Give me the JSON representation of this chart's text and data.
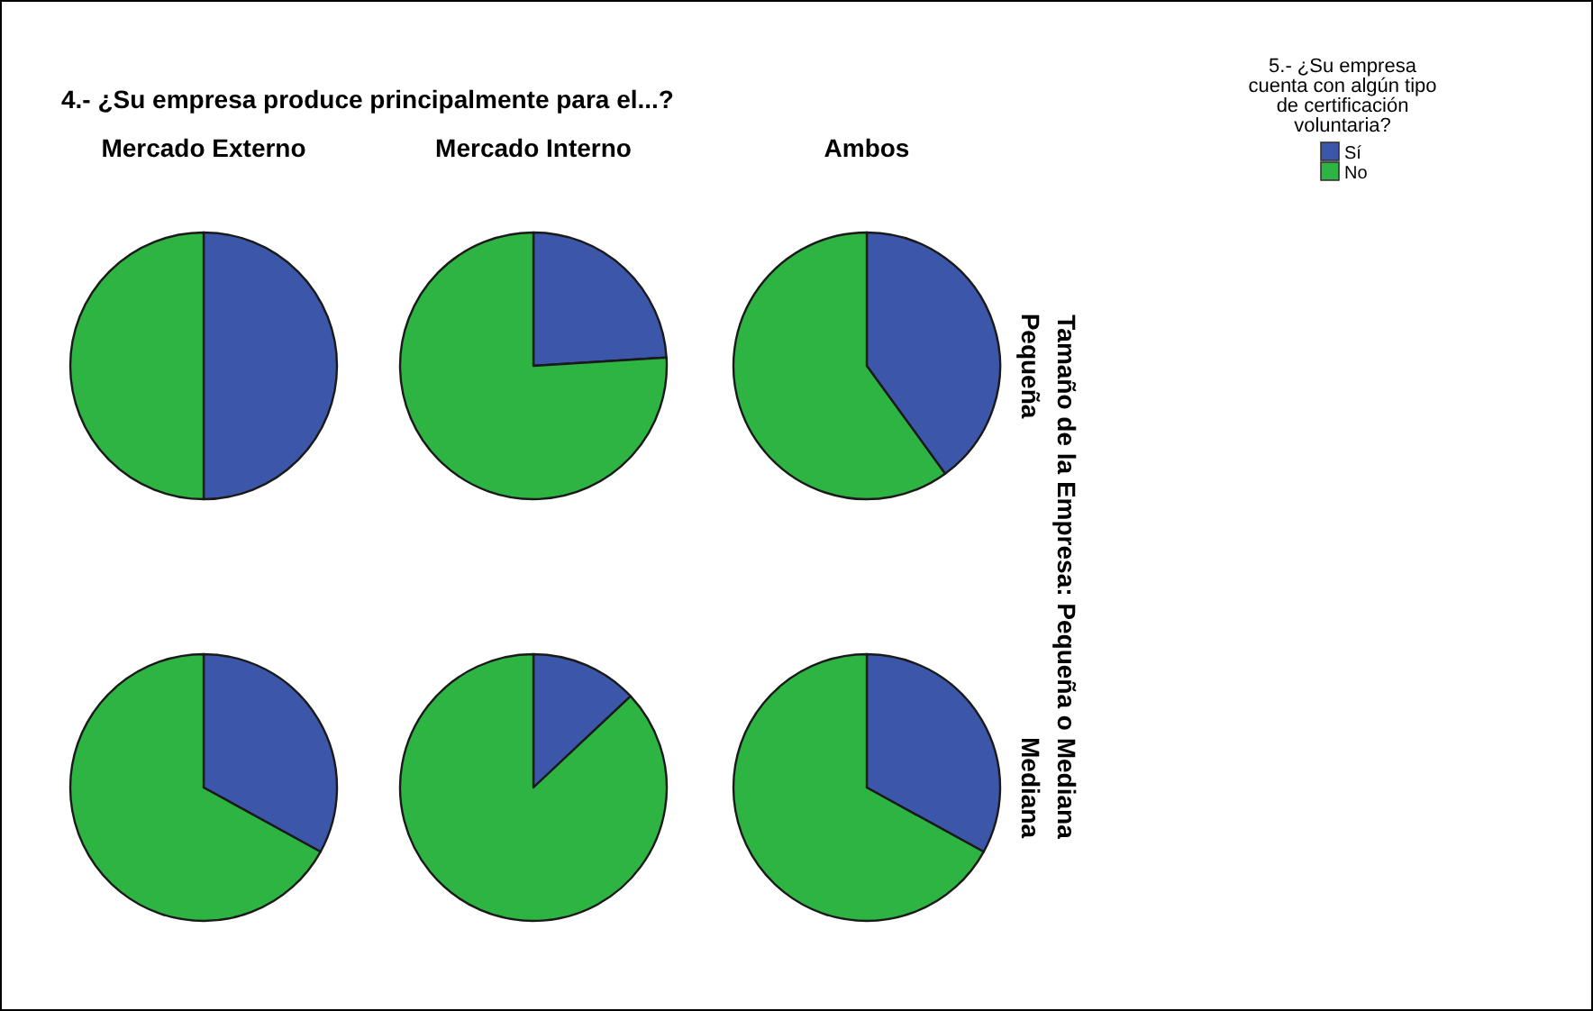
{
  "chart_data": [
    {
      "type": "pie",
      "title": "4.- ¿Su empresa produce principalmente para el...?",
      "subtitle": "Mercado Externo",
      "ylabel": "Tamaño de la Empresa: Pequeña o Mediana",
      "legend_title": "5.- ¿Su empresa cuenta con algún tipo de certificación voluntaria?",
      "legend": "top right",
      "categories": [
        "Sí",
        "No"
      ],
      "values": [
        50,
        50
      ],
      "colors": [
        "#3c56aa",
        "#2db442"
      ]
    },
    {
      "type": "pie",
      "subtitle": "Mercado Interno",
      "values": [
        24,
        76
      ],
      "colors": [
        "#3c56aa",
        "#2db442"
      ]
    },
    {
      "type": "pie",
      "subtitle": "Ambos",
      "y2label": "Pequeña",
      "values": [
        40,
        60
      ],
      "colors": [
        "#3c56aa",
        "#2db442"
      ]
    },
    {
      "type": "pie",
      "values": [
        33,
        67
      ],
      "colors": [
        "#3c56aa",
        "#2db442"
      ]
    },
    {
      "type": "pie",
      "values": [
        13,
        87
      ],
      "colors": [
        "#3c56aa",
        "#2db442"
      ]
    },
    {
      "type": "pie",
      "y2label": "Mediana",
      "values": [
        33,
        67
      ],
      "colors": [
        "#3c56aa",
        "#2db442"
      ]
    }
  ]
}
